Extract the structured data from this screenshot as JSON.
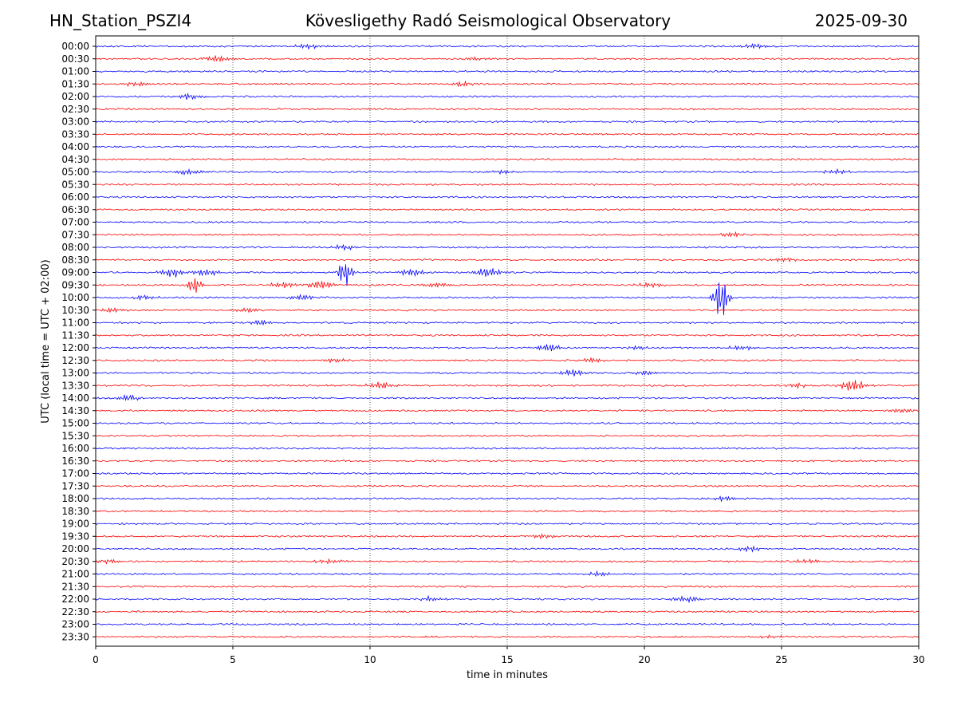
{
  "header": {
    "station": "HN_Station_PSZI4",
    "title": "Kövesligethy Radó Seismological Observatory",
    "date": "2025-09-30"
  },
  "chart_data": {
    "type": "line",
    "title": "Kövesligethy Radó Seismological Observatory",
    "xlabel": "time in minutes",
    "ylabel": "UTC (local time = UTC + 02:00)",
    "xlim": [
      0,
      30
    ],
    "xticks": [
      0,
      5,
      10,
      15,
      20,
      25,
      30
    ],
    "grid_x": true,
    "rows": [
      "00:00",
      "00:30",
      "01:00",
      "01:30",
      "02:00",
      "02:30",
      "03:00",
      "03:30",
      "04:00",
      "04:30",
      "05:00",
      "05:30",
      "06:00",
      "06:30",
      "07:00",
      "07:30",
      "08:00",
      "08:30",
      "09:00",
      "09:30",
      "10:00",
      "10:30",
      "11:00",
      "11:30",
      "12:00",
      "12:30",
      "13:00",
      "13:30",
      "14:00",
      "14:30",
      "15:00",
      "15:30",
      "16:00",
      "16:30",
      "17:00",
      "17:30",
      "18:00",
      "18:30",
      "19:00",
      "19:30",
      "20:00",
      "20:30",
      "21:00",
      "21:30",
      "22:00",
      "22:30",
      "23:00",
      "23:30"
    ],
    "trace_colors": [
      "#0000ff",
      "#ff0000"
    ],
    "events": [
      {
        "row": "00:00",
        "t": 7.7,
        "amp": 3
      },
      {
        "row": "00:00",
        "t": 24.0,
        "amp": 3
      },
      {
        "row": "00:30",
        "t": 4.4,
        "amp": 4
      },
      {
        "row": "00:30",
        "t": 13.8,
        "amp": 2
      },
      {
        "row": "01:30",
        "t": 1.5,
        "amp": 3
      },
      {
        "row": "01:30",
        "t": 13.3,
        "amp": 3
      },
      {
        "row": "02:00",
        "t": 3.4,
        "amp": 4
      },
      {
        "row": "05:00",
        "t": 3.4,
        "amp": 4
      },
      {
        "row": "05:00",
        "t": 14.8,
        "amp": 2
      },
      {
        "row": "05:00",
        "t": 27.0,
        "amp": 3
      },
      {
        "row": "07:30",
        "t": 23.2,
        "amp": 3
      },
      {
        "row": "08:00",
        "t": 9.0,
        "amp": 3
      },
      {
        "row": "08:30",
        "t": 25.2,
        "amp": 3
      },
      {
        "row": "09:00",
        "t": 2.8,
        "amp": 6
      },
      {
        "row": "09:00",
        "t": 4.0,
        "amp": 5
      },
      {
        "row": "09:00",
        "t": 9.1,
        "amp": 18
      },
      {
        "row": "09:00",
        "t": 11.5,
        "amp": 5
      },
      {
        "row": "09:00",
        "t": 14.3,
        "amp": 7
      },
      {
        "row": "09:30",
        "t": 3.6,
        "amp": 12
      },
      {
        "row": "09:30",
        "t": 6.8,
        "amp": 4
      },
      {
        "row": "09:30",
        "t": 8.2,
        "amp": 6
      },
      {
        "row": "09:30",
        "t": 12.4,
        "amp": 3
      },
      {
        "row": "09:30",
        "t": 20.2,
        "amp": 3
      },
      {
        "row": "10:00",
        "t": 1.8,
        "amp": 3
      },
      {
        "row": "10:00",
        "t": 7.5,
        "amp": 4
      },
      {
        "row": "10:00",
        "t": 22.8,
        "amp": 28
      },
      {
        "row": "10:30",
        "t": 0.6,
        "amp": 3
      },
      {
        "row": "10:30",
        "t": 5.5,
        "amp": 3
      },
      {
        "row": "11:00",
        "t": 6.0,
        "amp": 4
      },
      {
        "row": "12:00",
        "t": 16.5,
        "amp": 5
      },
      {
        "row": "12:00",
        "t": 19.8,
        "amp": 3
      },
      {
        "row": "12:00",
        "t": 23.5,
        "amp": 3
      },
      {
        "row": "12:30",
        "t": 8.7,
        "amp": 3
      },
      {
        "row": "12:30",
        "t": 18.1,
        "amp": 3
      },
      {
        "row": "13:00",
        "t": 17.4,
        "amp": 5
      },
      {
        "row": "13:00",
        "t": 20.0,
        "amp": 3
      },
      {
        "row": "13:30",
        "t": 10.4,
        "amp": 5
      },
      {
        "row": "13:30",
        "t": 27.6,
        "amp": 8
      },
      {
        "row": "13:30",
        "t": 25.5,
        "amp": 3
      },
      {
        "row": "14:00",
        "t": 1.2,
        "amp": 4
      },
      {
        "row": "14:30",
        "t": 29.5,
        "amp": 3
      },
      {
        "row": "18:00",
        "t": 23.0,
        "amp": 3
      },
      {
        "row": "19:30",
        "t": 16.3,
        "amp": 3
      },
      {
        "row": "20:00",
        "t": 23.8,
        "amp": 3
      },
      {
        "row": "20:30",
        "t": 0.4,
        "amp": 3
      },
      {
        "row": "20:30",
        "t": 8.5,
        "amp": 3
      },
      {
        "row": "20:30",
        "t": 26.0,
        "amp": 3
      },
      {
        "row": "21:00",
        "t": 18.3,
        "amp": 3
      },
      {
        "row": "22:00",
        "t": 12.2,
        "amp": 3
      },
      {
        "row": "22:00",
        "t": 21.5,
        "amp": 4
      },
      {
        "row": "23:30",
        "t": 24.6,
        "amp": 2
      }
    ]
  }
}
